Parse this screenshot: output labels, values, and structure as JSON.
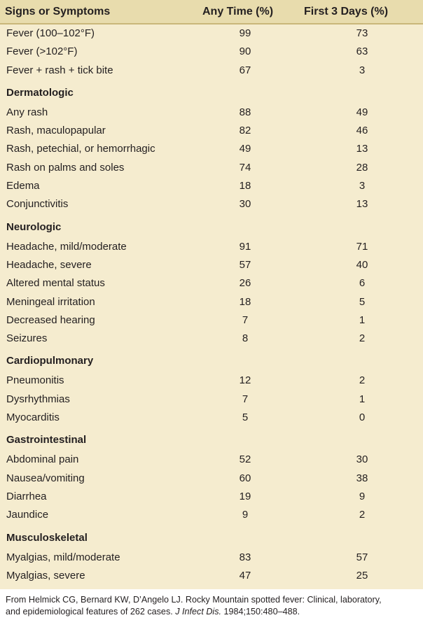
{
  "table": {
    "headers": {
      "symptom": "Signs or Symptoms",
      "any_time": "Any Time (%)",
      "first_3_days": "First 3 Days (%)"
    },
    "groups": [
      {
        "title": "",
        "rows": [
          {
            "label": "Fever (100–102°F)",
            "any": "99",
            "first": "73"
          },
          {
            "label": "Fever (>102°F)",
            "any": "90",
            "first": "63"
          },
          {
            "label": "Fever + rash + tick bite",
            "any": "67",
            "first": "3"
          }
        ]
      },
      {
        "title": "Dermatologic",
        "rows": [
          {
            "label": "Any rash",
            "any": "88",
            "first": "49"
          },
          {
            "label": "Rash, maculopapular",
            "any": "82",
            "first": "46"
          },
          {
            "label": "Rash, petechial, or hemorrhagic",
            "any": "49",
            "first": "13"
          },
          {
            "label": "Rash on palms and soles",
            "any": "74",
            "first": "28"
          },
          {
            "label": "Edema",
            "any": "18",
            "first": "3"
          },
          {
            "label": "Conjunctivitis",
            "any": "30",
            "first": "13"
          }
        ]
      },
      {
        "title": "Neurologic",
        "rows": [
          {
            "label": "Headache, mild/moderate",
            "any": "91",
            "first": "71"
          },
          {
            "label": "Headache, severe",
            "any": "57",
            "first": "40"
          },
          {
            "label": "Altered mental status",
            "any": "26",
            "first": "6"
          },
          {
            "label": "Meningeal irritation",
            "any": "18",
            "first": "5"
          },
          {
            "label": "Decreased hearing",
            "any": "7",
            "first": "1"
          },
          {
            "label": "Seizures",
            "any": "8",
            "first": "2"
          }
        ]
      },
      {
        "title": "Cardiopulmonary",
        "rows": [
          {
            "label": "Pneumonitis",
            "any": "12",
            "first": "2"
          },
          {
            "label": "Dysrhythmias",
            "any": "7",
            "first": "1"
          },
          {
            "label": "Myocarditis",
            "any": "5",
            "first": "0"
          }
        ]
      },
      {
        "title": "Gastrointestinal",
        "rows": [
          {
            "label": "Abdominal pain",
            "any": "52",
            "first": "30"
          },
          {
            "label": "Nausea/vomiting",
            "any": "60",
            "first": "38"
          },
          {
            "label": "Diarrhea",
            "any": "19",
            "first": "9"
          },
          {
            "label": "Jaundice",
            "any": "9",
            "first": "2"
          }
        ]
      },
      {
        "title": "Musculoskeletal",
        "rows": [
          {
            "label": "Myalgias, mild/moderate",
            "any": "83",
            "first": "57"
          },
          {
            "label": "Myalgias, severe",
            "any": "47",
            "first": "25"
          }
        ]
      }
    ]
  },
  "footnote": {
    "line1": "From Helmick CG, Bernard KW, D’Angelo LJ. Rocky Mountain spotted fever: Clinical, laboratory,",
    "line2_pre": "and epidemiological features of 262 cases. ",
    "line2_journal": "J Infect Dis.",
    "line2_post": " 1984;150:480–488."
  }
}
